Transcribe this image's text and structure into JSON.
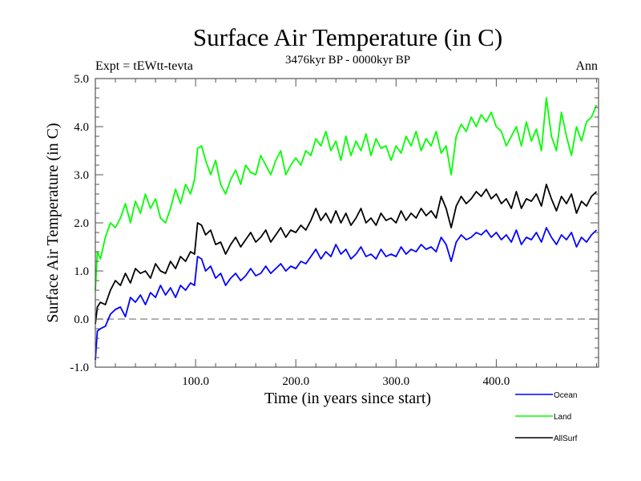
{
  "chart_data": {
    "type": "line",
    "title": "Surface Air Temperature (in C)",
    "subtitle": "3476kyr BP - 0000kyr BP",
    "left_annotation": "Expt = tEWtt-tevta",
    "right_annotation": "Ann",
    "xlabel": "Time (in years since start)",
    "ylabel": "Surface Air Temperature (in C)",
    "xlim": [
      0,
      502
    ],
    "ylim": [
      -1.0,
      5.0
    ],
    "x_ticks": [
      100,
      200,
      300,
      400
    ],
    "x_tick_labels": [
      "100.0",
      "200.0",
      "300.0",
      "400.0"
    ],
    "x_minor_step": 20,
    "y_ticks": [
      -1,
      0,
      1,
      2,
      3,
      4,
      5
    ],
    "y_tick_labels": [
      "-1.0",
      "0.0",
      "1.0",
      "2.0",
      "3.0",
      "4.0",
      "5.0"
    ],
    "y_minor_step": 0.2,
    "reference_line": {
      "y": 0.0,
      "style": "dashed",
      "color": "#808080"
    },
    "grid": false,
    "legend_position": "bottom-right",
    "series": [
      {
        "name": "Ocean",
        "color": "#0000ff",
        "x": [
          0,
          2,
          5,
          10,
          15,
          20,
          25,
          30,
          35,
          40,
          45,
          50,
          55,
          60,
          65,
          70,
          75,
          80,
          85,
          90,
          95,
          99,
          102,
          106,
          110,
          115,
          120,
          125,
          130,
          135,
          140,
          145,
          150,
          155,
          160,
          165,
          170,
          175,
          180,
          185,
          190,
          195,
          200,
          205,
          210,
          215,
          220,
          225,
          230,
          235,
          240,
          245,
          250,
          255,
          260,
          265,
          270,
          275,
          280,
          285,
          290,
          295,
          300,
          305,
          310,
          315,
          320,
          325,
          330,
          335,
          340,
          345,
          350,
          355,
          360,
          365,
          370,
          375,
          380,
          385,
          390,
          395,
          400,
          405,
          410,
          415,
          420,
          425,
          430,
          435,
          440,
          445,
          450,
          455,
          460,
          465,
          470,
          475,
          480,
          485,
          490,
          495,
          500
        ],
        "y": [
          -0.85,
          -0.25,
          -0.2,
          -0.15,
          0.1,
          0.2,
          0.25,
          0.05,
          0.45,
          0.35,
          0.5,
          0.3,
          0.55,
          0.45,
          0.7,
          0.5,
          0.65,
          0.45,
          0.7,
          0.6,
          0.75,
          0.7,
          1.3,
          1.25,
          1.0,
          1.1,
          0.85,
          0.95,
          0.7,
          0.85,
          0.95,
          0.8,
          0.9,
          1.05,
          0.9,
          0.95,
          1.1,
          0.95,
          1.05,
          1.15,
          1.0,
          1.1,
          1.05,
          1.2,
          1.15,
          1.3,
          1.45,
          1.25,
          1.4,
          1.3,
          1.55,
          1.35,
          1.45,
          1.25,
          1.35,
          1.5,
          1.3,
          1.35,
          1.25,
          1.45,
          1.3,
          1.35,
          1.3,
          1.5,
          1.35,
          1.45,
          1.4,
          1.55,
          1.45,
          1.5,
          1.4,
          1.7,
          1.55,
          1.2,
          1.6,
          1.75,
          1.65,
          1.7,
          1.8,
          1.75,
          1.85,
          1.7,
          1.8,
          1.65,
          1.75,
          1.6,
          1.85,
          1.55,
          1.7,
          1.65,
          1.8,
          1.6,
          1.9,
          1.7,
          1.55,
          1.75,
          1.65,
          1.8,
          1.5,
          1.7,
          1.6,
          1.75,
          1.85
        ]
      },
      {
        "name": "Land",
        "color": "#00ff00",
        "x": [
          0,
          2,
          5,
          10,
          15,
          20,
          25,
          30,
          35,
          40,
          45,
          50,
          55,
          60,
          65,
          70,
          75,
          80,
          85,
          90,
          95,
          99,
          102,
          106,
          110,
          115,
          120,
          125,
          130,
          135,
          140,
          145,
          150,
          155,
          160,
          165,
          170,
          175,
          180,
          185,
          190,
          195,
          200,
          205,
          210,
          215,
          220,
          225,
          230,
          235,
          240,
          245,
          250,
          255,
          260,
          265,
          270,
          275,
          280,
          285,
          290,
          295,
          300,
          305,
          310,
          315,
          320,
          325,
          330,
          335,
          340,
          345,
          350,
          355,
          360,
          365,
          370,
          375,
          380,
          385,
          390,
          395,
          400,
          405,
          410,
          415,
          420,
          425,
          430,
          435,
          440,
          445,
          450,
          455,
          460,
          465,
          470,
          475,
          480,
          485,
          490,
          495,
          500
        ],
        "y": [
          0.6,
          1.4,
          1.25,
          1.7,
          2.0,
          1.9,
          2.1,
          2.4,
          2.0,
          2.45,
          2.2,
          2.6,
          2.3,
          2.5,
          2.1,
          2.0,
          2.3,
          2.7,
          2.4,
          2.8,
          2.6,
          2.9,
          3.55,
          3.6,
          3.3,
          3.0,
          3.3,
          2.8,
          2.6,
          2.9,
          3.1,
          2.8,
          3.2,
          3.05,
          3.0,
          3.4,
          3.2,
          3.0,
          3.3,
          3.5,
          3.0,
          3.2,
          3.35,
          3.2,
          3.5,
          3.4,
          3.75,
          3.6,
          3.9,
          3.5,
          3.7,
          3.3,
          3.8,
          3.4,
          3.7,
          3.5,
          3.85,
          3.4,
          3.75,
          3.55,
          3.6,
          3.3,
          3.6,
          3.45,
          3.8,
          3.6,
          3.9,
          3.5,
          3.75,
          3.6,
          3.9,
          3.45,
          3.6,
          3.0,
          3.8,
          4.05,
          3.9,
          4.2,
          4.0,
          4.25,
          4.1,
          4.3,
          4.0,
          3.9,
          3.6,
          3.8,
          4.0,
          3.6,
          4.1,
          3.7,
          3.95,
          3.5,
          4.6,
          3.8,
          3.5,
          4.3,
          3.8,
          3.4,
          4.0,
          3.7,
          4.1,
          4.2,
          4.45
        ]
      },
      {
        "name": "AllSurf",
        "color": "#000000",
        "x": [
          0,
          2,
          5,
          10,
          15,
          20,
          25,
          30,
          35,
          40,
          45,
          50,
          55,
          60,
          65,
          70,
          75,
          80,
          85,
          90,
          95,
          99,
          102,
          106,
          110,
          115,
          120,
          125,
          130,
          135,
          140,
          145,
          150,
          155,
          160,
          165,
          170,
          175,
          180,
          185,
          190,
          195,
          200,
          205,
          210,
          215,
          220,
          225,
          230,
          235,
          240,
          245,
          250,
          255,
          260,
          265,
          270,
          275,
          280,
          285,
          290,
          295,
          300,
          305,
          310,
          315,
          320,
          325,
          330,
          335,
          340,
          345,
          350,
          355,
          360,
          365,
          370,
          375,
          380,
          385,
          390,
          395,
          400,
          405,
          410,
          415,
          420,
          425,
          430,
          435,
          440,
          445,
          450,
          455,
          460,
          465,
          470,
          475,
          480,
          485,
          490,
          495,
          500
        ],
        "y": [
          -0.1,
          0.25,
          0.35,
          0.3,
          0.6,
          0.8,
          0.7,
          0.95,
          0.75,
          1.05,
          0.95,
          1.0,
          0.85,
          1.15,
          1.0,
          0.95,
          1.2,
          1.05,
          1.3,
          1.2,
          1.4,
          1.35,
          2.0,
          1.95,
          1.75,
          1.85,
          1.55,
          1.6,
          1.35,
          1.55,
          1.7,
          1.5,
          1.65,
          1.8,
          1.6,
          1.7,
          1.85,
          1.6,
          1.75,
          1.9,
          1.7,
          1.85,
          1.8,
          1.95,
          1.85,
          2.05,
          2.3,
          2.05,
          2.2,
          2.0,
          2.25,
          2.0,
          2.2,
          1.95,
          2.1,
          2.3,
          2.0,
          2.1,
          1.95,
          2.2,
          2.05,
          2.1,
          2.0,
          2.25,
          2.05,
          2.2,
          2.1,
          2.3,
          2.15,
          2.25,
          2.1,
          2.55,
          2.3,
          1.9,
          2.35,
          2.55,
          2.4,
          2.5,
          2.65,
          2.55,
          2.7,
          2.5,
          2.6,
          2.4,
          2.5,
          2.3,
          2.65,
          2.3,
          2.5,
          2.45,
          2.6,
          2.35,
          2.8,
          2.5,
          2.25,
          2.55,
          2.4,
          2.6,
          2.2,
          2.45,
          2.35,
          2.55,
          2.65
        ]
      }
    ]
  }
}
